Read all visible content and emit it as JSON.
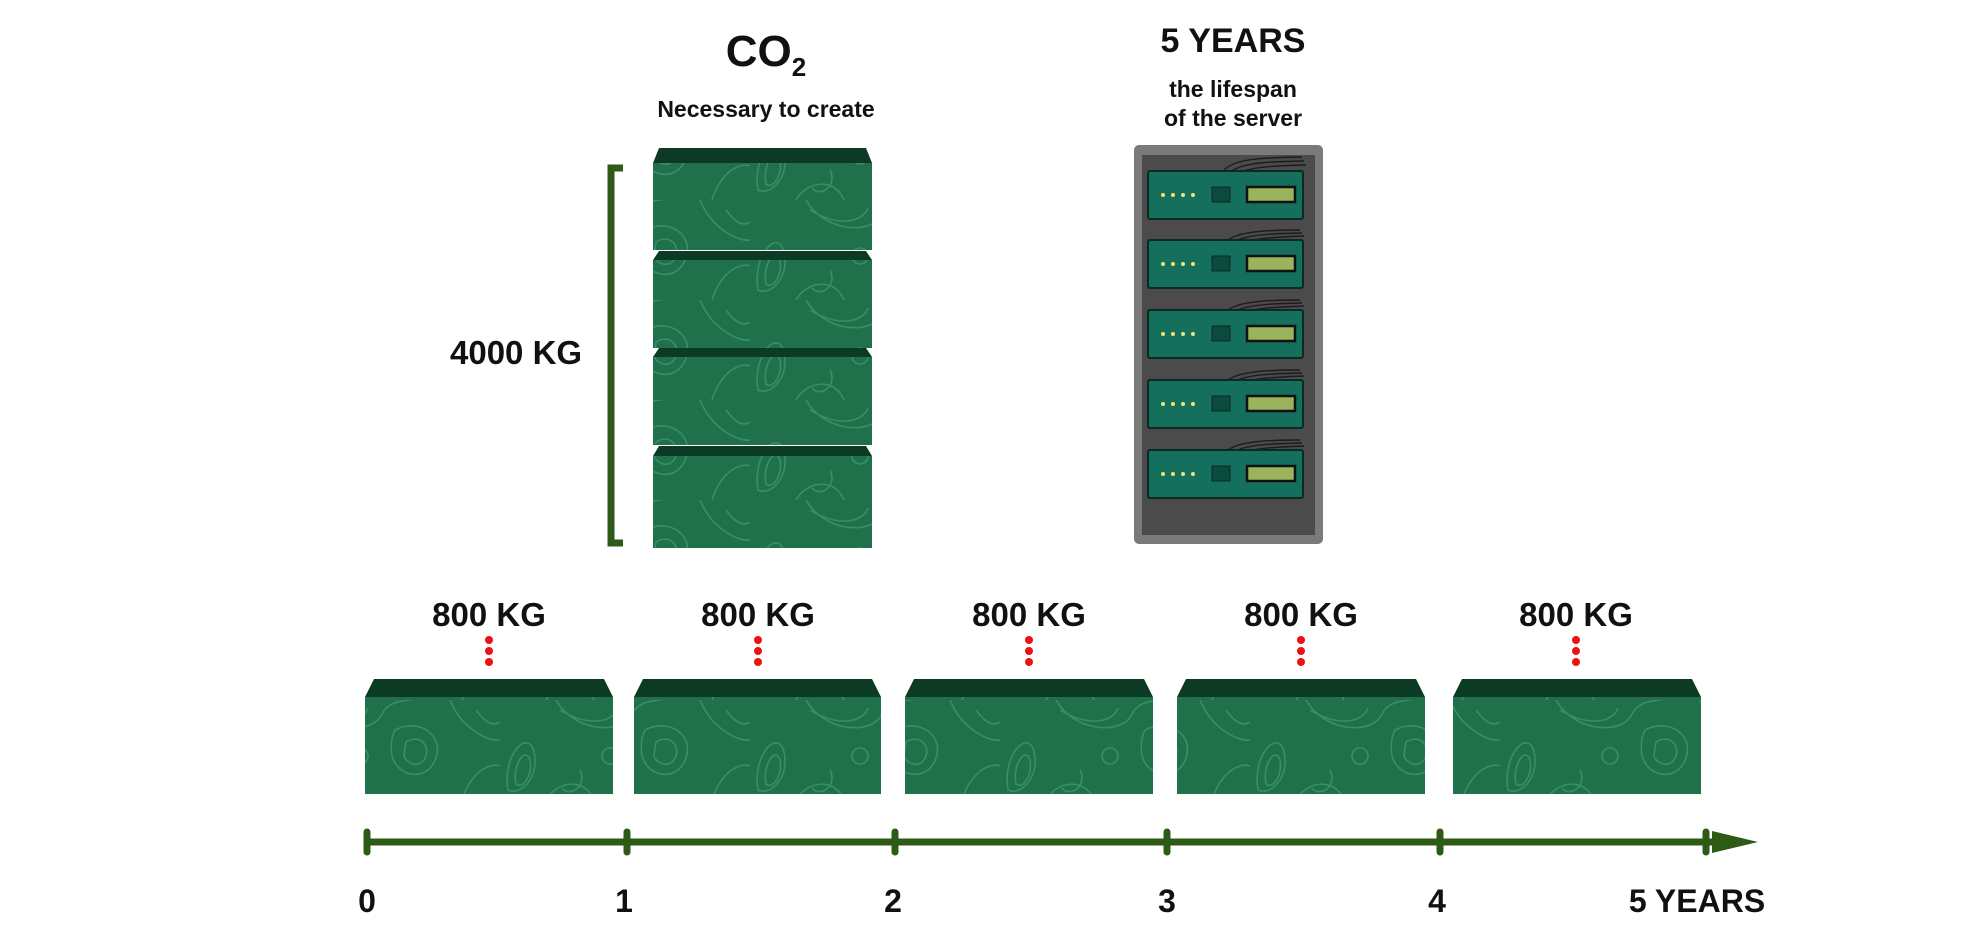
{
  "header": {
    "co2_main": "CO",
    "co2_sub": "2",
    "co2_caption": "Necessary to create",
    "lifespan_title": "5 YEARS",
    "lifespan_line1": "the lifespan",
    "lifespan_line2": "of the server"
  },
  "total_emissions": "4000 KG",
  "yearly_blocks": [
    {
      "label": "800 KG",
      "value_kg": 800
    },
    {
      "label": "800 KG",
      "value_kg": 800
    },
    {
      "label": "800 KG",
      "value_kg": 800
    },
    {
      "label": "800 KG",
      "value_kg": 800
    },
    {
      "label": "800 KG",
      "value_kg": 800
    }
  ],
  "timeline": {
    "ticks": [
      "0",
      "1",
      "2",
      "3",
      "4",
      "5 YEARS"
    ]
  },
  "colors": {
    "block_front": "#1f704b",
    "block_top": "#0c3a25",
    "block_contour": "#3f9a6c",
    "axis": "#2d5a15",
    "dots": "#ee1111",
    "rack_frame": "#7a7a7a",
    "rack_inner": "#4b4b4b",
    "server_face": "#14705d",
    "server_screen": "#9bb35c",
    "server_led": "#f0e27a"
  }
}
